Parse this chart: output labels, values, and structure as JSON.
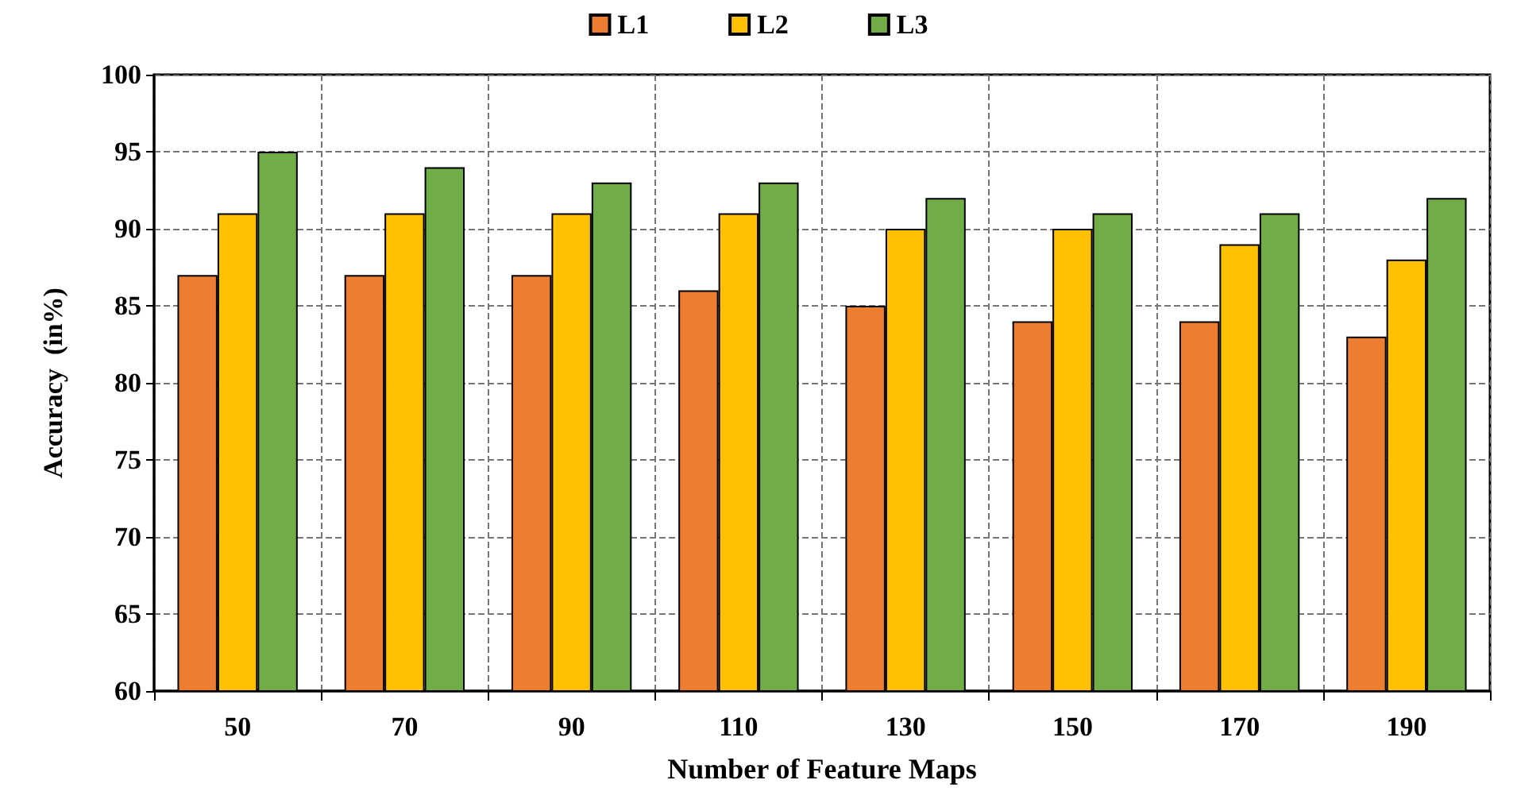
{
  "chart_data": {
    "type": "bar",
    "xlabel": "Number of Feature Maps",
    "ylabel": "Accuracy  (in%)",
    "categories": [
      "50",
      "70",
      "90",
      "110",
      "130",
      "150",
      "170",
      "190"
    ],
    "series": [
      {
        "name": "L1",
        "color": "#ed7d31",
        "values": [
          87,
          87,
          87,
          86,
          85,
          84,
          84,
          83
        ]
      },
      {
        "name": "L2",
        "color": "#ffc000",
        "values": [
          91,
          91,
          91,
          91,
          90,
          90,
          89,
          88
        ]
      },
      {
        "name": "L3",
        "color": "#70ad47",
        "values": [
          95,
          94,
          93,
          93,
          92,
          91,
          91,
          92
        ]
      }
    ],
    "ylim": [
      60,
      100
    ],
    "yticks": [
      60,
      65,
      70,
      75,
      80,
      85,
      90,
      95,
      100
    ],
    "grid": true,
    "legend": "top"
  }
}
